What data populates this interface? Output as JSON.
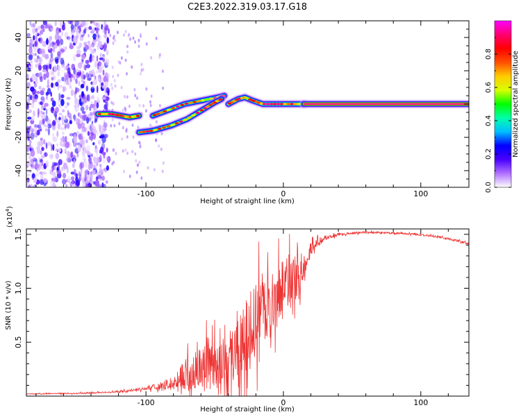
{
  "title": "C2E3.2022.319.03.17.G18",
  "colorbar": {
    "label": "Normalized spectral amplitude",
    "ticks": [
      "0.0",
      "0.2",
      "0.4",
      "0.6",
      "0.8"
    ],
    "tick_values": [
      0.0,
      0.2,
      0.4,
      0.6,
      0.8
    ],
    "range": [
      0,
      1
    ],
    "colors": [
      "#ffffff",
      "#b070ff",
      "#4a00ff",
      "#0000ff",
      "#00bfff",
      "#00ffaa",
      "#00ff00",
      "#d8ff00",
      "#ffcc00",
      "#ff5000",
      "#ff0000",
      "#ff0070",
      "#ff00ff"
    ]
  },
  "chart_data": [
    {
      "type": "heatmap",
      "xlabel": "Height of straight line (km)",
      "ylabel": "Frequency (Hz)",
      "xlim": [
        -187,
        135
      ],
      "ylim": [
        -50,
        50
      ],
      "xticks": [
        "-100",
        "0",
        "100"
      ],
      "xtick_values": [
        -100,
        0,
        100
      ],
      "yticks": [
        "-40",
        "-20",
        "0",
        "20",
        "40"
      ],
      "ytick_values": [
        -40,
        -20,
        0,
        20,
        40
      ],
      "ridges": [
        {
          "points": [
            [
              -135,
              -6
            ],
            [
              -125,
              -6
            ],
            [
              -118,
              -7
            ],
            [
              -112,
              -8
            ],
            [
              -105,
              -7
            ]
          ],
          "amplitude": 0.85
        },
        {
          "points": [
            [
              -95,
              -7
            ],
            [
              -85,
              -4
            ],
            [
              -72,
              0
            ],
            [
              -60,
              2
            ],
            [
              -48,
              4
            ],
            [
              -43,
              5
            ]
          ],
          "amplitude": 0.6
        },
        {
          "points": [
            [
              -105,
              -17
            ],
            [
              -95,
              -16
            ],
            [
              -82,
              -13
            ],
            [
              -70,
              -9
            ],
            [
              -58,
              -3
            ],
            [
              -50,
              1
            ],
            [
              -45,
              3
            ]
          ],
          "amplitude": 0.6
        },
        {
          "points": [
            [
              -40,
              0
            ],
            [
              -33,
              3
            ],
            [
              -28,
              4
            ],
            [
              -22,
              2
            ],
            [
              -15,
              0
            ],
            [
              -5,
              0
            ],
            [
              5,
              0
            ],
            [
              15,
              0
            ]
          ],
          "amplitude": 0.7
        },
        {
          "points": [
            [
              15,
              0
            ],
            [
              60,
              0
            ],
            [
              100,
              0
            ],
            [
              135,
              0
            ]
          ],
          "amplitude": 0.97
        }
      ],
      "noise_region": {
        "x": [
          -187,
          -127
        ],
        "y": [
          -50,
          50
        ]
      }
    },
    {
      "type": "line",
      "xlabel": "Height of straight line (km)",
      "ylabel": "SNR (10 * v/v)",
      "y_multiplier": "(x10",
      "y_multiplier_exp": "4",
      "y_multiplier_close": ")",
      "xlim": [
        -187,
        135
      ],
      "ylim": [
        0,
        15500
      ],
      "xticks": [
        "-100",
        "0",
        "100"
      ],
      "xtick_values": [
        -100,
        0,
        100
      ],
      "yticks": [
        "0.5",
        "1.0",
        "1.5"
      ],
      "ytick_values": [
        5000,
        10000,
        15000
      ],
      "color": "#ee3333",
      "series": [
        {
          "x": [
            -187,
            -150,
            -120,
            -100,
            -90,
            -80,
            -70,
            -60,
            -50,
            -45,
            -40,
            -35,
            -30,
            -25,
            -20,
            -15,
            -10,
            -5,
            0,
            5,
            10,
            15,
            20,
            25,
            30,
            40,
            50,
            60,
            70,
            80,
            90,
            100,
            110,
            120,
            130,
            135
          ],
          "y": [
            200,
            250,
            400,
            700,
            900,
            1200,
            1800,
            2400,
            2800,
            3000,
            3200,
            3600,
            4500,
            5500,
            6500,
            7200,
            7800,
            8800,
            9800,
            10500,
            11000,
            12000,
            13500,
            14200,
            14600,
            15000,
            15100,
            15200,
            15150,
            15100,
            15050,
            14950,
            14800,
            14600,
            14300,
            14100
          ],
          "noise_amplitude": [
            50,
            60,
            100,
            200,
            400,
            800,
            2000,
            2500,
            2500,
            2500,
            3000,
            3500,
            4000,
            4500,
            4500,
            4000,
            3500,
            3500,
            3500,
            3000,
            2500,
            1500,
            800,
            500,
            300,
            150,
            120,
            100,
            100,
            100,
            100,
            100,
            100,
            120,
            150,
            150
          ]
        }
      ]
    }
  ]
}
